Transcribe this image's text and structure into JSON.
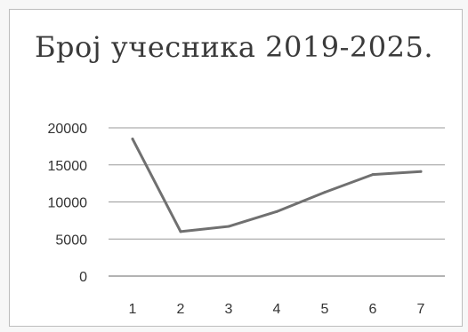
{
  "chart_data": {
    "type": "line",
    "title": "Број учесника 2019-2025.",
    "xlabel": "",
    "ylabel": "",
    "categories": [
      "1",
      "2",
      "3",
      "4",
      "5",
      "6",
      "7"
    ],
    "series": [
      {
        "values": [
          18500,
          6000,
          6700,
          8700,
          11300,
          13700,
          14100
        ]
      }
    ],
    "ylim": [
      0,
      20000
    ],
    "yticks": [
      0,
      5000,
      10000,
      15000,
      20000
    ],
    "grid": true,
    "legend": "none",
    "colors": {
      "line": "#707070",
      "grid": "#9a9a9a",
      "text": "#333333"
    }
  }
}
